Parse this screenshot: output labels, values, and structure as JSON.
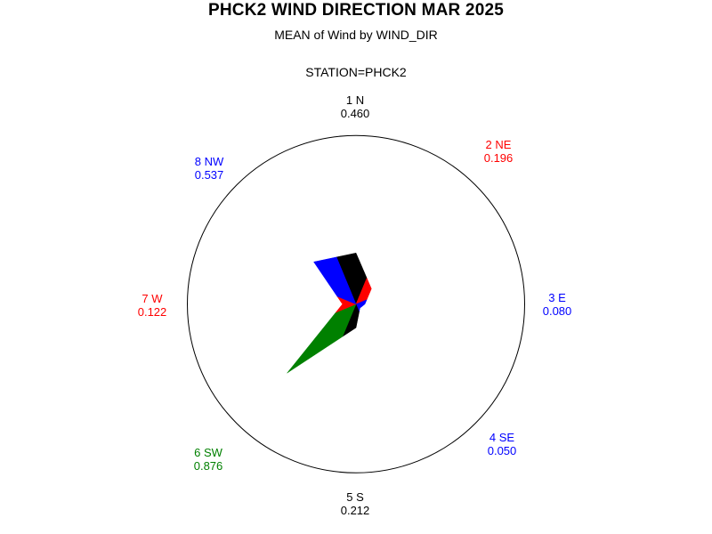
{
  "title": "PHCK2 WIND DIRECTION MAR 2025",
  "subtitle1": "MEAN of Wind by WIND_DIR",
  "subtitle2": "STATION=PHCK2",
  "chart_data": {
    "type": "wind-rose-star",
    "statistic": "MEAN of Wind",
    "group_variable": "WIND_DIR",
    "station": "PHCK2",
    "sectors": [
      {
        "label": "1 N",
        "direction": "N",
        "value": 0.46,
        "display_value": "0.460",
        "color": "#000000"
      },
      {
        "label": "2 NE",
        "direction": "NE",
        "value": 0.196,
        "display_value": "0.196",
        "color": "#ff0000"
      },
      {
        "label": "3 E",
        "direction": "E",
        "value": 0.08,
        "display_value": "0.080",
        "color": "#0000ff"
      },
      {
        "label": "4 SE",
        "direction": "SE",
        "value": 0.05,
        "display_value": "0.050",
        "color": "#0000ff"
      },
      {
        "label": "5 S",
        "direction": "S",
        "value": 0.212,
        "display_value": "0.212",
        "color": "#000000"
      },
      {
        "label": "6 SW",
        "direction": "SW",
        "value": 0.876,
        "display_value": "0.876",
        "color": "#008000"
      },
      {
        "label": "7 W",
        "direction": "W",
        "value": 0.122,
        "display_value": "0.122",
        "color": "#ff0000"
      },
      {
        "label": "8 NW",
        "direction": "NW",
        "value": 0.537,
        "display_value": "0.537",
        "color": "#0000ff"
      }
    ]
  }
}
